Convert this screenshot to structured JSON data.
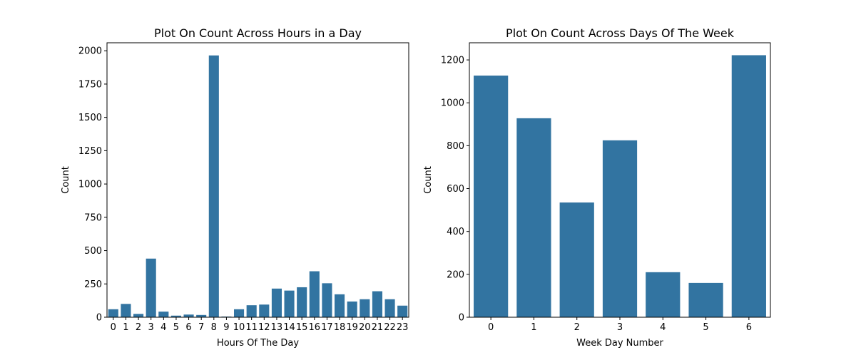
{
  "colors": {
    "bar": "#3274a1",
    "axis": "#000000",
    "background": "#ffffff"
  },
  "chart_data": [
    {
      "type": "bar",
      "title": "Plot On Count Across Hours in a Day",
      "xlabel": "Hours Of The Day",
      "ylabel": "Count",
      "categories": [
        "0",
        "1",
        "2",
        "3",
        "4",
        "5",
        "6",
        "7",
        "8",
        "9",
        "10",
        "11",
        "12",
        "13",
        "14",
        "15",
        "16",
        "17",
        "18",
        "19",
        "20",
        "21",
        "22",
        "23"
      ],
      "values": [
        60,
        100,
        25,
        440,
        42,
        12,
        20,
        17,
        1965,
        5,
        60,
        90,
        95,
        215,
        200,
        225,
        345,
        255,
        172,
        118,
        135,
        195,
        135,
        87
      ],
      "ylim": [
        0,
        2060
      ],
      "yticks": [
        0,
        250,
        500,
        750,
        1000,
        1250,
        1500,
        1750,
        2000
      ],
      "grid": false
    },
    {
      "type": "bar",
      "title": "Plot On Count Across Days Of The Week",
      "xlabel": "Week Day Number",
      "ylabel": "Count",
      "categories": [
        "0",
        "1",
        "2",
        "3",
        "4",
        "5",
        "6"
      ],
      "values": [
        1127,
        928,
        535,
        825,
        210,
        160,
        1222
      ],
      "ylim": [
        0,
        1280
      ],
      "yticks": [
        0,
        200,
        400,
        600,
        800,
        1000,
        1200
      ],
      "grid": false
    }
  ]
}
